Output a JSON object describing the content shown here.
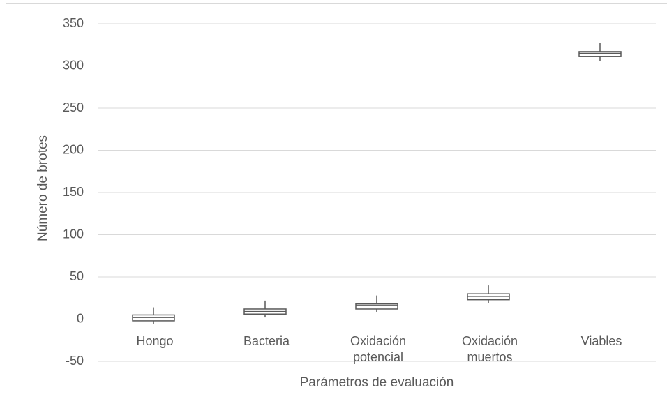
{
  "chart_data": {
    "type": "box",
    "y_label": "Número de brotes",
    "x_label": "Parámetros de evaluación",
    "categories": [
      "Hongo",
      "Bacteria",
      "Oxidación potencial",
      "Oxidación muertos",
      "Viables"
    ],
    "boxes": [
      {
        "min": -6,
        "q1": -2,
        "median": 2,
        "q3": 5,
        "max": 14
      },
      {
        "min": 2,
        "q1": 6,
        "median": 9,
        "q3": 12,
        "max": 22
      },
      {
        "min": 8,
        "q1": 12,
        "median": 16,
        "q3": 18,
        "max": 28
      },
      {
        "min": 19,
        "q1": 23,
        "median": 27,
        "q3": 30,
        "max": 40
      },
      {
        "min": 306,
        "q1": 311,
        "median": 315,
        "q3": 317,
        "max": 327
      }
    ],
    "color": "#595959",
    "ylim": [
      -50,
      350
    ],
    "yticks": [
      -50,
      0,
      50,
      100,
      150,
      200,
      250,
      300,
      350
    ],
    "grid": true
  }
}
